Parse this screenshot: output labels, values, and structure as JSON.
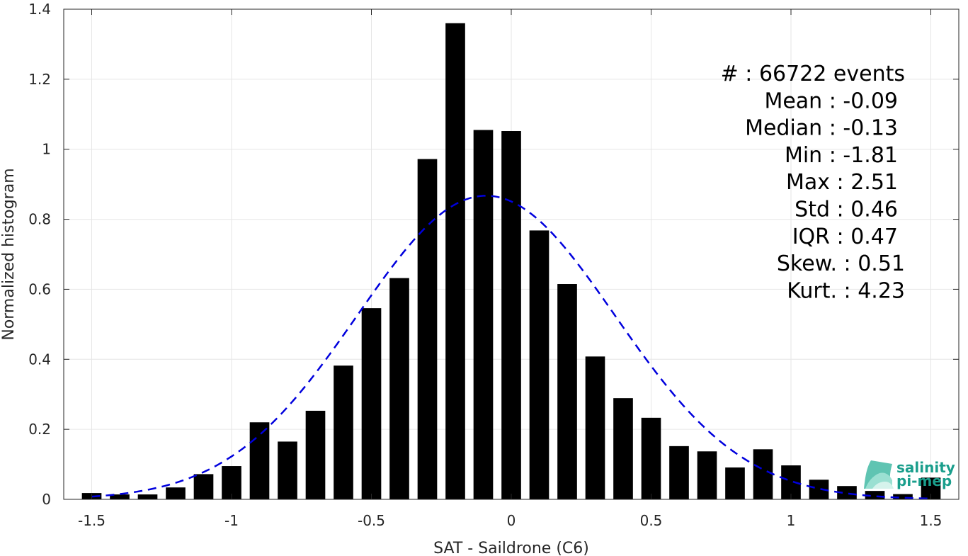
{
  "chart_data": {
    "type": "bar",
    "xlabel": "SAT - Saildrone (C6)",
    "ylabel": "Normalized histogram",
    "xlim": [
      -1.6,
      1.6
    ],
    "ylim": [
      0,
      1.4
    ],
    "xticks": [
      -1.5,
      -1,
      -0.5,
      0,
      0.5,
      1,
      1.5
    ],
    "xtick_labels": [
      "-1.5",
      "-1",
      "-0.5",
      "0",
      "0.5",
      "1",
      "1.5"
    ],
    "yticks": [
      0,
      0.2,
      0.4,
      0.6,
      0.8,
      1,
      1.2,
      1.4
    ],
    "ytick_labels": [
      "0",
      "0.2",
      "0.4",
      "0.6",
      "0.8",
      "1",
      "1.2",
      "1.4"
    ],
    "grid": true,
    "bar_width": 0.07,
    "bar_color": "#000000",
    "x": [
      -1.5,
      -1.4,
      -1.3,
      -1.2,
      -1.1,
      -1.0,
      -0.9,
      -0.8,
      -0.7,
      -0.6,
      -0.5,
      -0.4,
      -0.3,
      -0.2,
      -0.1,
      0.0,
      0.1,
      0.2,
      0.3,
      0.4,
      0.5,
      0.6,
      0.7,
      0.8,
      0.9,
      1.0,
      1.1,
      1.2,
      1.3,
      1.4,
      1.5
    ],
    "values": [
      0.018,
      0.014,
      0.014,
      0.034,
      0.072,
      0.095,
      0.22,
      0.165,
      0.253,
      0.382,
      0.546,
      0.632,
      0.972,
      1.36,
      1.055,
      1.052,
      0.768,
      0.615,
      0.408,
      0.289,
      0.233,
      0.152,
      0.137,
      0.091,
      0.143,
      0.097,
      0.056,
      0.038,
      0.024,
      0.015,
      0.062
    ],
    "fit": {
      "type": "gaussian",
      "mean": -0.09,
      "std": 0.46,
      "color": "#0000dd",
      "style": "dashed"
    },
    "stats": [
      "#  : 66722 events",
      "Mean : -0.09",
      "Median : -0.13",
      "Min : -1.81",
      "Max : 2.51",
      "Std : 0.46",
      "IQR : 0.47",
      "Skew. : 0.51",
      "Kurt. : 4.23"
    ]
  },
  "logo": {
    "line1": "salinity",
    "line2": "pi-mep",
    "color": "#1a9e8c"
  }
}
